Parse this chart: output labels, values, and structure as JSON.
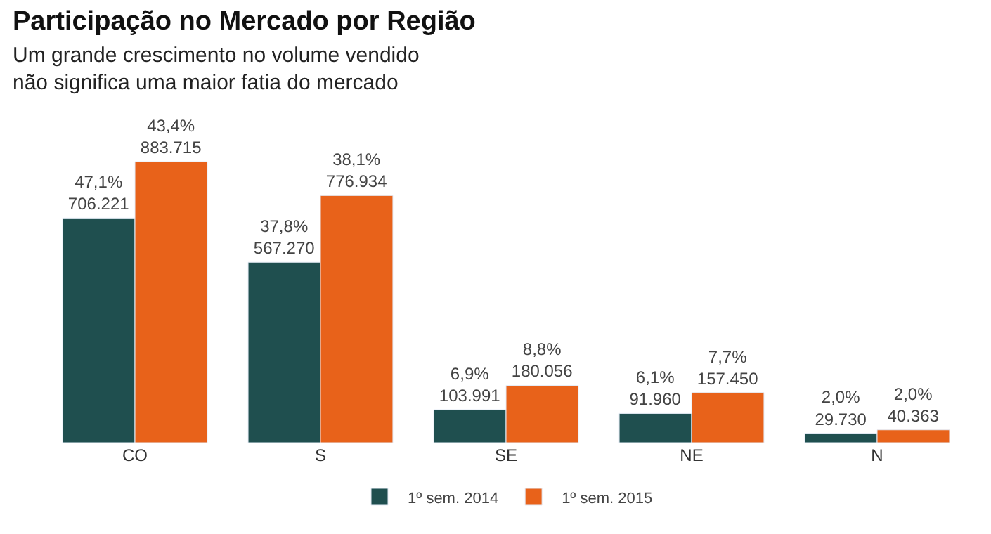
{
  "chart_data": {
    "type": "bar",
    "title": "Participação no Mercado por Região",
    "subtitle": "Um grande crescimento no volume vendido\nnão significa uma maior fatia do mercado",
    "categories": [
      "CO",
      "S",
      "SE",
      "NE",
      "N"
    ],
    "series": [
      {
        "name": "1º sem. 2014",
        "color": "#1f4f4f",
        "values": [
          706221,
          567270,
          103991,
          91960,
          29730
        ],
        "value_labels": [
          "47,1%\n706.221",
          "37,8%\n567.270",
          "6,9%\n103.991",
          "6,1%\n91.960",
          "2,0%\n29.730"
        ]
      },
      {
        "name": "1º sem. 2015",
        "color": "#e8621a",
        "values": [
          883715,
          776934,
          180056,
          157450,
          40363
        ],
        "value_labels": [
          "43,4%\n883.715",
          "38,1%\n776.934",
          "8,8%\n180.056",
          "7,7%\n157.450",
          "2,0%\n40.363"
        ]
      }
    ],
    "legend": "bottom"
  }
}
